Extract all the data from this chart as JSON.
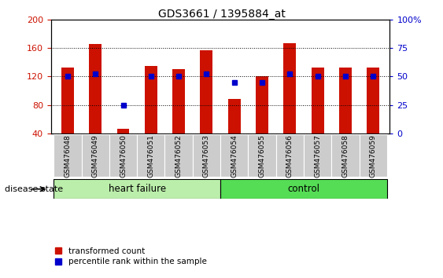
{
  "title": "GDS3661 / 1395884_at",
  "categories": [
    "GSM476048",
    "GSM476049",
    "GSM476050",
    "GSM476051",
    "GSM476052",
    "GSM476053",
    "GSM476054",
    "GSM476055",
    "GSM476056",
    "GSM476057",
    "GSM476058",
    "GSM476059"
  ],
  "red_values": [
    133,
    166,
    47,
    135,
    130,
    157,
    88,
    120,
    167,
    133,
    133,
    133
  ],
  "blue_values": [
    50,
    52,
    25,
    50,
    50,
    52,
    45,
    45,
    52,
    50,
    50,
    50
  ],
  "bar_bottom": 40,
  "ylim": [
    40,
    200
  ],
  "ylim_right": [
    0,
    100
  ],
  "yticks_left": [
    40,
    80,
    120,
    160,
    200
  ],
  "yticks_right": [
    0,
    25,
    50,
    75,
    100
  ],
  "ytick_labels_right": [
    "0",
    "25",
    "50",
    "75",
    "100%"
  ],
  "red_color": "#CC1100",
  "blue_color": "#0000CC",
  "bar_width": 0.45,
  "hf_color": "#BBEEAA",
  "ctrl_color": "#55DD55",
  "tick_bg": "#CCCCCC",
  "disease_state_label": "disease state",
  "legend_red": "transformed count",
  "legend_blue": "percentile rank within the sample"
}
